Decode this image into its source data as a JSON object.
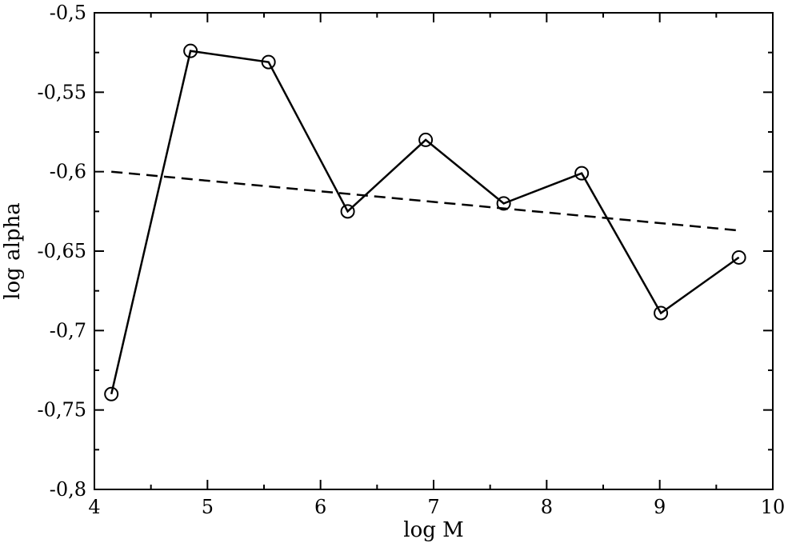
{
  "chart_data": {
    "type": "line",
    "xlabel": "log M",
    "ylabel": "log alpha",
    "xlim": [
      4,
      10
    ],
    "ylim": [
      -0.8,
      -0.5
    ],
    "x_ticks": [
      4,
      5,
      6,
      7,
      8,
      9,
      10
    ],
    "x_tick_labels": [
      "4",
      "5",
      "6",
      "7",
      "8",
      "9",
      "10"
    ],
    "y_ticks": [
      -0.8,
      -0.75,
      -0.7,
      -0.65,
      -0.6,
      -0.55,
      -0.5
    ],
    "y_tick_labels": [
      "-0,8",
      "-0,75",
      "-0,7",
      "-0,65",
      "-0,6",
      "-0,55",
      "-0,5"
    ],
    "grid": false,
    "series": [
      {
        "style": "solid-with-open-circles",
        "color": "#000000",
        "x": [
          4.15,
          4.85,
          5.54,
          6.24,
          6.93,
          7.62,
          8.31,
          9.01,
          9.7
        ],
        "y": [
          -0.74,
          -0.524,
          -0.531,
          -0.625,
          -0.58,
          -0.62,
          -0.601,
          -0.689,
          -0.654
        ]
      },
      {
        "style": "dashed",
        "color": "#000000",
        "x": [
          4.15,
          9.7
        ],
        "y": [
          -0.6,
          -0.637
        ]
      }
    ]
  }
}
